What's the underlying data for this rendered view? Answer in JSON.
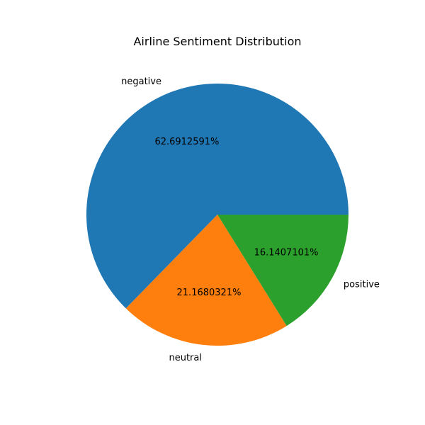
{
  "chart_data": {
    "type": "pie",
    "title": "Airline Sentiment Distribution",
    "categories": [
      "negative",
      "neutral",
      "positive"
    ],
    "values": [
      62.6912591,
      21.1680321,
      16.1407101
    ],
    "value_labels": [
      "62.6912591%",
      "21.1680321%",
      "16.1407101%"
    ],
    "colors": [
      "#1f77b4",
      "#ff7f0e",
      "#2ca02c"
    ],
    "start_angle_deg": 0,
    "direction": "counterclockwise"
  }
}
